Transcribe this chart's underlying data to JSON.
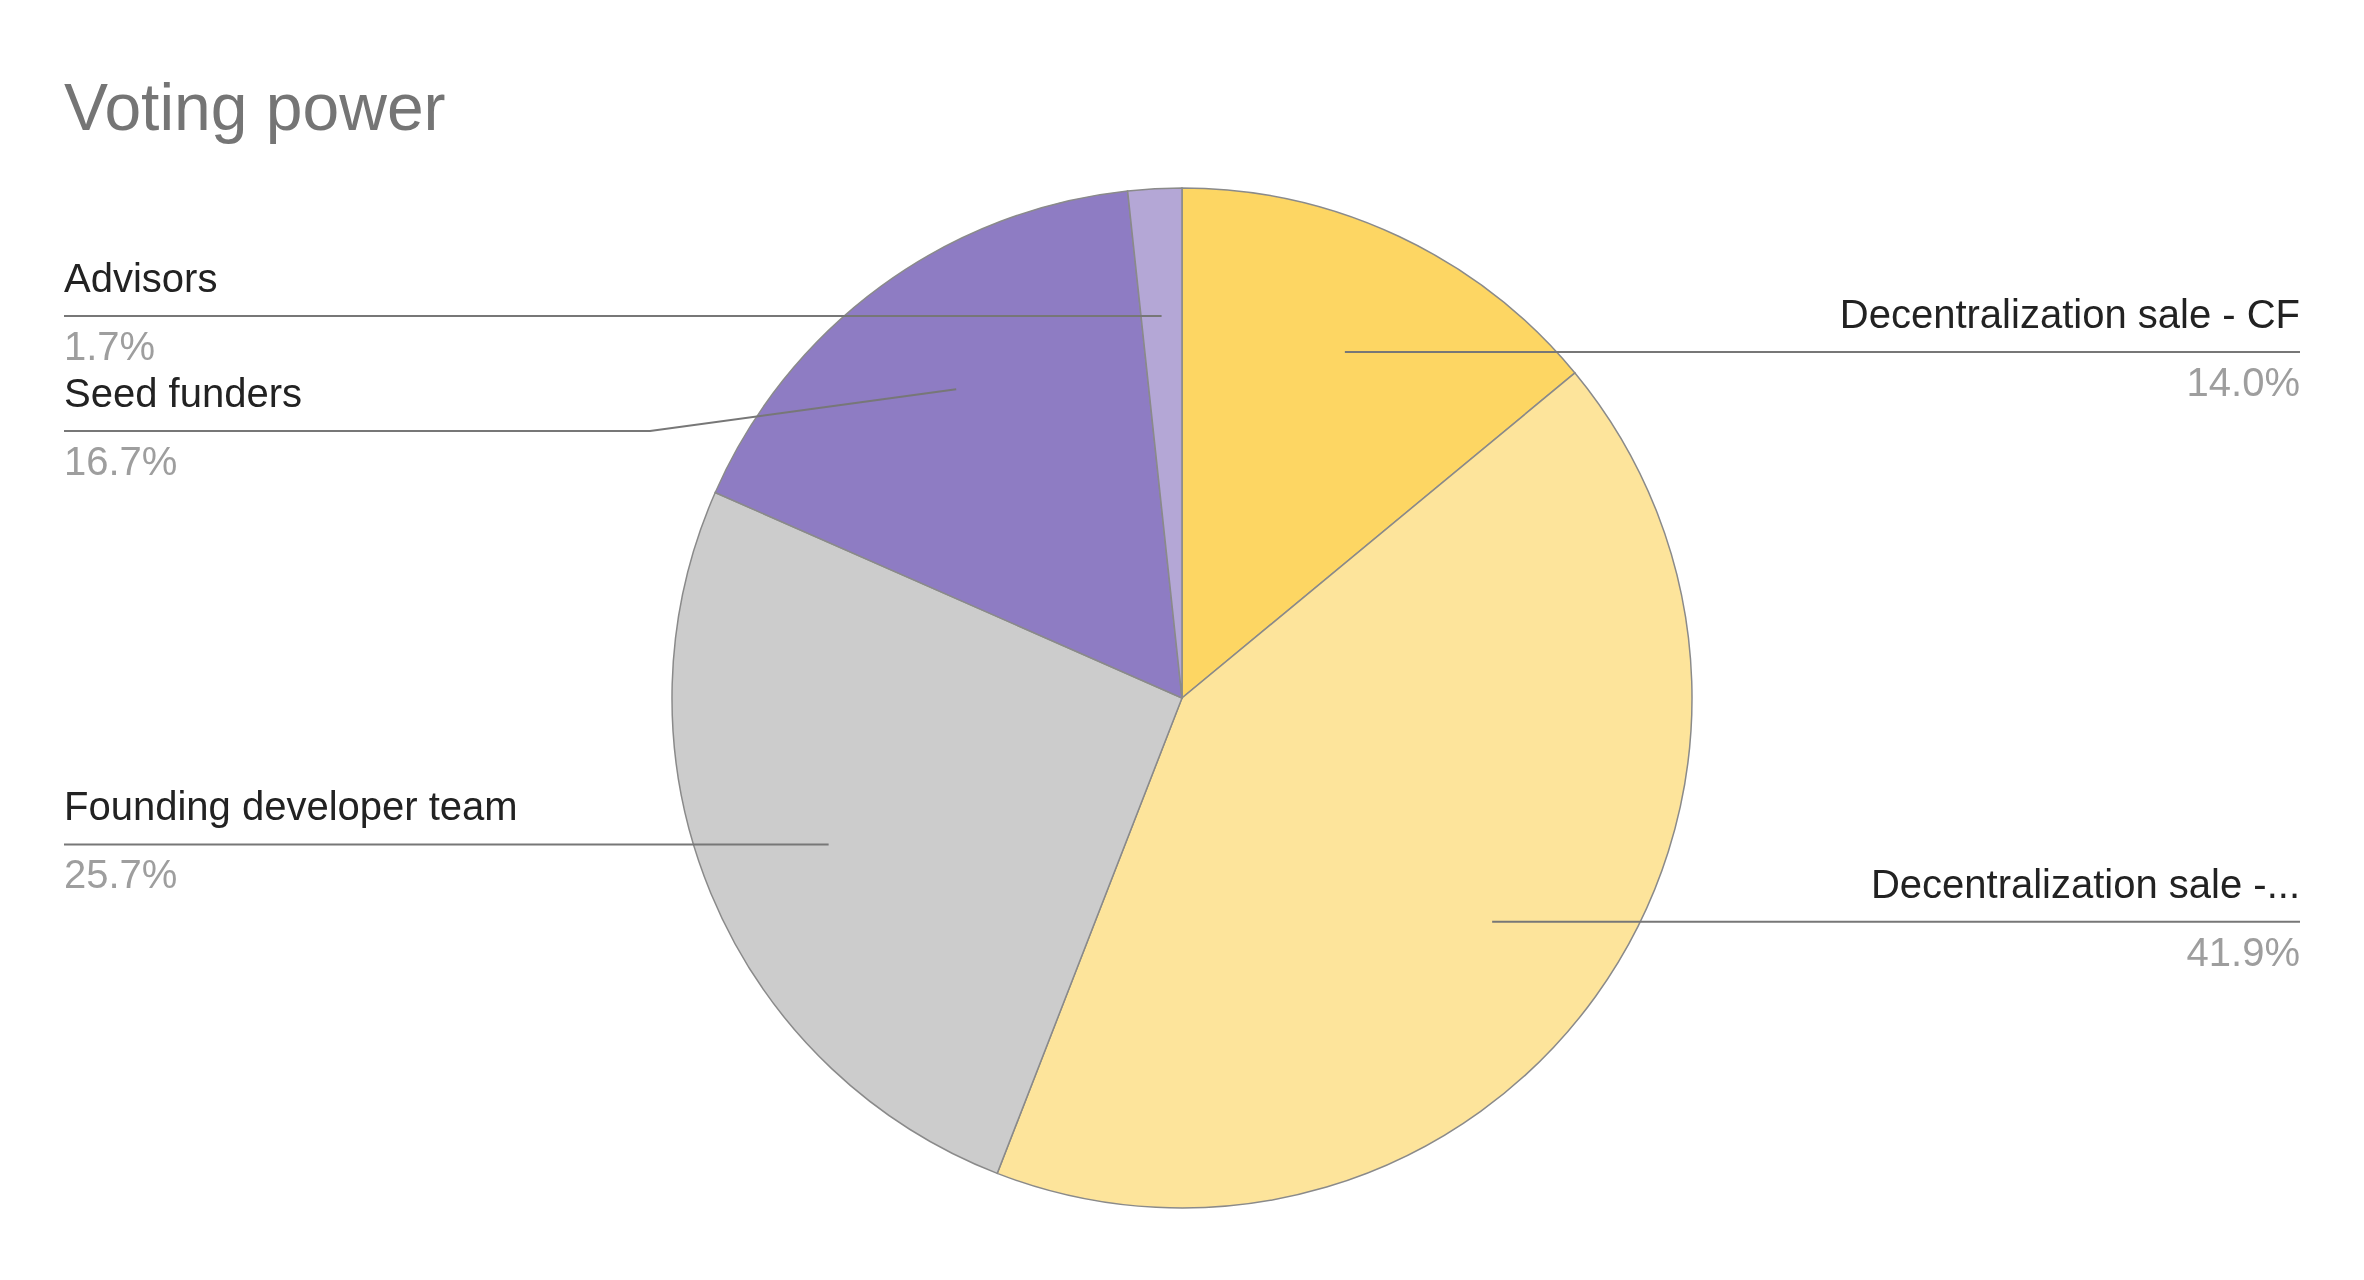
{
  "chart_data": {
    "type": "pie",
    "title": "Voting power",
    "categories": [
      "Decentralization sale - CF",
      "Decentralization sale -...",
      "Founding developer team",
      "Seed funders",
      "Advisors"
    ],
    "values": [
      14.0,
      41.9,
      25.7,
      16.7,
      1.7
    ],
    "value_labels": [
      "14.0%",
      "41.9%",
      "25.7%",
      "16.7%",
      "1.7%"
    ],
    "colors": [
      "#fdd663",
      "#fde49b",
      "#cccccc",
      "#8e7cc3",
      "#b4a7d6"
    ]
  }
}
